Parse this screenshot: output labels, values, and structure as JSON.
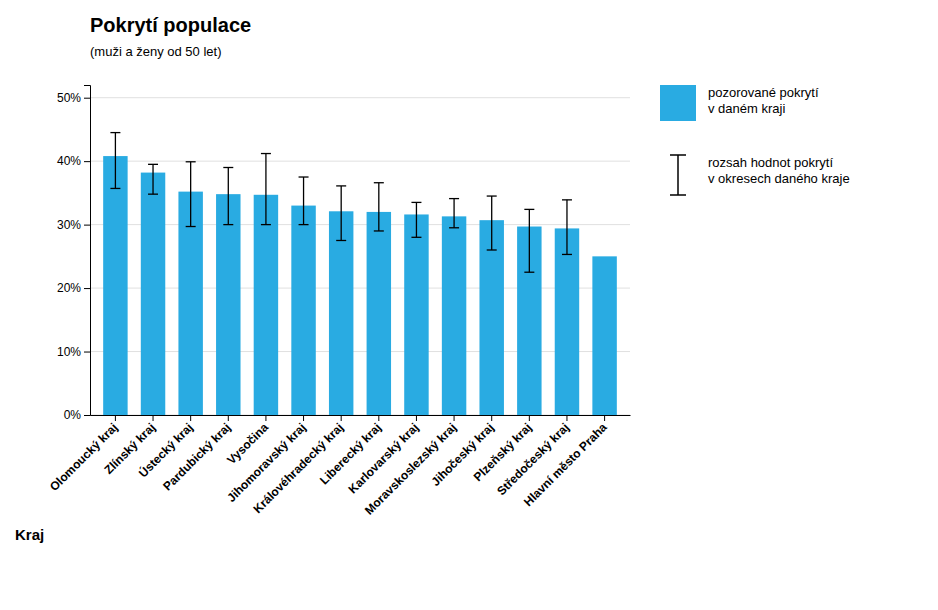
{
  "chart_data": {
    "type": "bar",
    "title": "Pokrytí populace",
    "subtitle": "(muži a ženy od 50 let)",
    "xlabel": "Kraj",
    "categories": [
      "Olomoucký kraj",
      "Zlínský kraj",
      "Ústecký kraj",
      "Pardubický kraj",
      "Vysočina",
      "Jihomoravský kraj",
      "Královéhradecký kraj",
      "Liberecký kraj",
      "Karlovarský kraj",
      "Moravskoslezský kraj",
      "Jihočeský kraj",
      "Plzeňský kraj",
      "Středočeský kraj",
      "Hlavní město Praha"
    ],
    "series": [
      {
        "name": "pozorované pokrytí\nv daném kraji",
        "color": "#29ABE2",
        "values": [
          0.408,
          0.382,
          0.352,
          0.348,
          0.347,
          0.33,
          0.321,
          0.32,
          0.316,
          0.313,
          0.307,
          0.297,
          0.294,
          0.25
        ],
        "err_low": [
          0.051,
          0.034,
          0.055,
          0.048,
          0.047,
          0.03,
          0.046,
          0.03,
          0.036,
          0.018,
          0.047,
          0.072,
          0.041,
          0.0
        ],
        "err_high": [
          0.037,
          0.013,
          0.047,
          0.042,
          0.065,
          0.045,
          0.04,
          0.046,
          0.019,
          0.028,
          0.038,
          0.027,
          0.045,
          0.0
        ],
        "error_name": "rozsah hodnot pokrytí\nv okresech daného kraje",
        "error_color": "black"
      }
    ],
    "ylim": [
      0,
      0.52
    ],
    "yticks": [
      {
        "value": 0.0,
        "label": "0%"
      },
      {
        "value": 0.1,
        "label": "10%"
      },
      {
        "value": 0.2,
        "label": "20%"
      },
      {
        "value": 0.3,
        "label": "30%"
      },
      {
        "value": 0.4,
        "label": "40%"
      },
      {
        "value": 0.5,
        "label": "50%"
      }
    ],
    "grid": true,
    "legend": "right"
  }
}
